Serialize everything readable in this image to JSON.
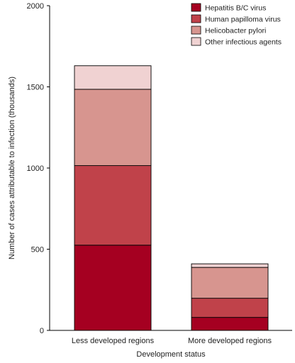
{
  "chart_data": {
    "type": "bar",
    "stacked": true,
    "title": "",
    "xlabel": "Development status",
    "ylabel": "Number of cases attributable to infection (thousands)",
    "ylim": [
      0,
      2000
    ],
    "yticks": [
      "0",
      "500",
      "1000",
      "1500",
      "2000"
    ],
    "categories": [
      "Less developed regions",
      "More developed regions"
    ],
    "series": [
      {
        "name": "Hepatitis B/C virus",
        "color": "#a50021",
        "values": [
          525,
          80
        ]
      },
      {
        "name": "Human papilloma virus",
        "color": "#c0424a",
        "values": [
          490,
          118
        ]
      },
      {
        "name": "Helicobacter pylori",
        "color": "#d7958f",
        "values": [
          470,
          190
        ]
      },
      {
        "name": "Other infectious agents",
        "color": "#f0d2d2",
        "values": [
          145,
          22
        ]
      }
    ],
    "legend": "top-right",
    "grid": false
  }
}
